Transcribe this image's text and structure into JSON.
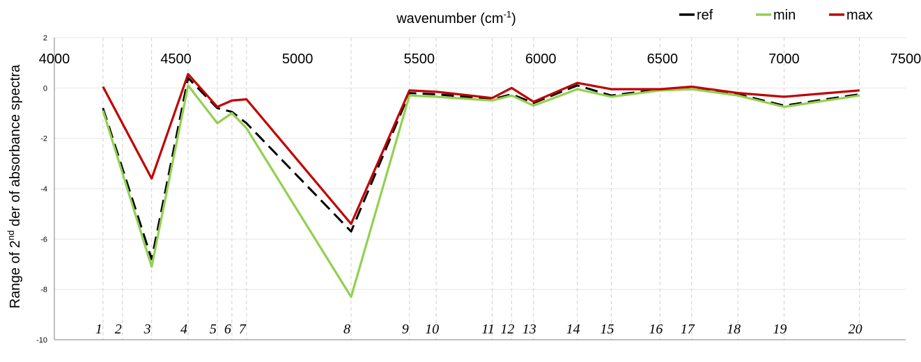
{
  "chart_data": {
    "type": "line",
    "xlabel": {
      "main": "wavenumber (cm",
      "sup": "-1",
      "tail": ")"
    },
    "ylabel": {
      "main": "Range of 2",
      "sup": "nd",
      "tail": " der of absorbance spectra"
    },
    "xlim": [
      4000,
      7500
    ],
    "ylim": [
      -10,
      2
    ],
    "x_ticks": [
      4000,
      4500,
      5000,
      5500,
      6000,
      6500,
      7000,
      7500
    ],
    "y_ticks": [
      2,
      0,
      -2,
      -4,
      -6,
      -8,
      -10
    ],
    "grid": true,
    "legend_position": "top-right",
    "x": [
      4200,
      4400,
      4550,
      4670,
      4730,
      4790,
      5220,
      5460,
      5570,
      5800,
      5880,
      5970,
      6150,
      6290,
      6490,
      6620,
      6810,
      7000,
      7310
    ],
    "peaks": [
      {
        "label": "1",
        "x": 4200
      },
      {
        "label": "2",
        "x": 4280
      },
      {
        "label": "3",
        "x": 4400
      },
      {
        "label": "4",
        "x": 4550
      },
      {
        "label": "5",
        "x": 4670
      },
      {
        "label": "6",
        "x": 4730
      },
      {
        "label": "7",
        "x": 4790
      },
      {
        "label": "8",
        "x": 5220
      },
      {
        "label": "9",
        "x": 5460
      },
      {
        "label": "10",
        "x": 5570
      },
      {
        "label": "11",
        "x": 5800
      },
      {
        "label": "12",
        "x": 5880
      },
      {
        "label": "13",
        "x": 5970
      },
      {
        "label": "14",
        "x": 6150
      },
      {
        "label": "15",
        "x": 6290
      },
      {
        "label": "16",
        "x": 6490
      },
      {
        "label": "17",
        "x": 6620
      },
      {
        "label": "18",
        "x": 6810
      },
      {
        "label": "19",
        "x": 7000
      },
      {
        "label": "20",
        "x": 7310
      }
    ],
    "series": [
      {
        "name": "ref",
        "color": "#000000",
        "dash": true,
        "values": [
          -0.8,
          -6.8,
          0.4,
          -0.8,
          -0.95,
          -1.4,
          -5.7,
          -0.2,
          -0.25,
          -0.45,
          -0.25,
          -0.6,
          0.1,
          -0.3,
          -0.05,
          -0.05,
          -0.25,
          -0.7,
          -0.25
        ]
      },
      {
        "name": "min",
        "color": "#92d050",
        "dash": false,
        "values": [
          -0.9,
          -7.1,
          0.1,
          -1.4,
          -1.0,
          -1.6,
          -8.3,
          -0.3,
          -0.35,
          -0.5,
          -0.3,
          -0.7,
          -0.05,
          -0.35,
          -0.1,
          -0.05,
          -0.3,
          -0.75,
          -0.3
        ]
      },
      {
        "name": "max",
        "color": "#c00000",
        "dash": false,
        "values": [
          0.05,
          -3.6,
          0.55,
          -0.75,
          -0.5,
          -0.45,
          -5.4,
          -0.1,
          -0.15,
          -0.4,
          0.0,
          -0.55,
          0.2,
          -0.05,
          -0.05,
          0.05,
          -0.2,
          -0.35,
          -0.1
        ]
      }
    ]
  }
}
